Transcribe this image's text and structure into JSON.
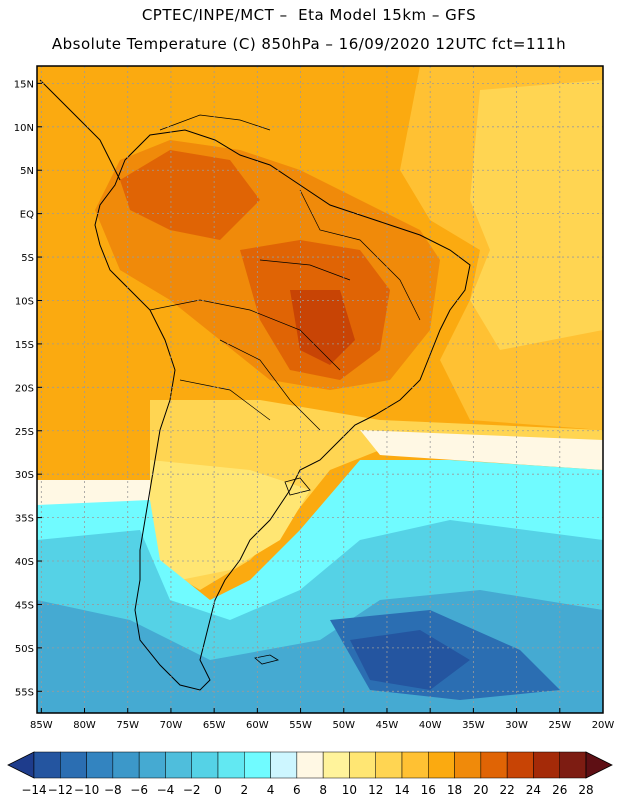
{
  "header": {
    "line1": "CPTEC/INPE/MCT –  Eta Model 15km – GFS",
    "line2": "Absolute Temperature (C) 850hPa – 16/09/2020 12UTC fct=111h"
  },
  "axes": {
    "lat_labels": [
      "15N",
      "10N",
      "5N",
      "EQ",
      "5S",
      "10S",
      "15S",
      "20S",
      "25S",
      "30S",
      "35S",
      "40S",
      "45S",
      "50S",
      "55S"
    ],
    "lat_values": [
      15,
      10,
      5,
      0,
      -5,
      -10,
      -15,
      -20,
      -25,
      -30,
      -35,
      -40,
      -45,
      -50,
      -55
    ],
    "lon_labels": [
      "85W",
      "80W",
      "75W",
      "70W",
      "65W",
      "60W",
      "55W",
      "50W",
      "45W",
      "40W",
      "35W",
      "30W",
      "25W",
      "20W"
    ],
    "lon_values": [
      -85,
      -80,
      -75,
      -70,
      -65,
      -60,
      -55,
      -50,
      -45,
      -40,
      -35,
      -30,
      -25,
      -20
    ],
    "lat_range": [
      -57.5,
      17
    ],
    "lon_range": [
      -85.5,
      -20
    ]
  },
  "colorbar": {
    "labels": [
      "−14",
      "−12",
      "−10",
      "−8",
      "−6",
      "−4",
      "−2",
      "0",
      "2",
      "4",
      "6",
      "8",
      "10",
      "12",
      "14",
      "16",
      "18",
      "20",
      "22",
      "24",
      "26",
      "28"
    ],
    "colors": [
      "#1e3c8c",
      "#2455a0",
      "#2b6eb2",
      "#3384c0",
      "#3c98c9",
      "#45aad2",
      "#4fbedc",
      "#55d2e6",
      "#62e8f2",
      "#70fbff",
      "#cdf6ff",
      "#fff8e4",
      "#fff39b",
      "#ffe673",
      "#ffd552",
      "#ffc133",
      "#fbaa10",
      "#f08a0a",
      "#e06405",
      "#c84405",
      "#a42a08",
      "#7d1c12",
      "#5e0f14"
    ]
  },
  "colors": {
    "frame": "#000000",
    "grid": "#9a9a9a",
    "coastline": "#000000"
  }
}
